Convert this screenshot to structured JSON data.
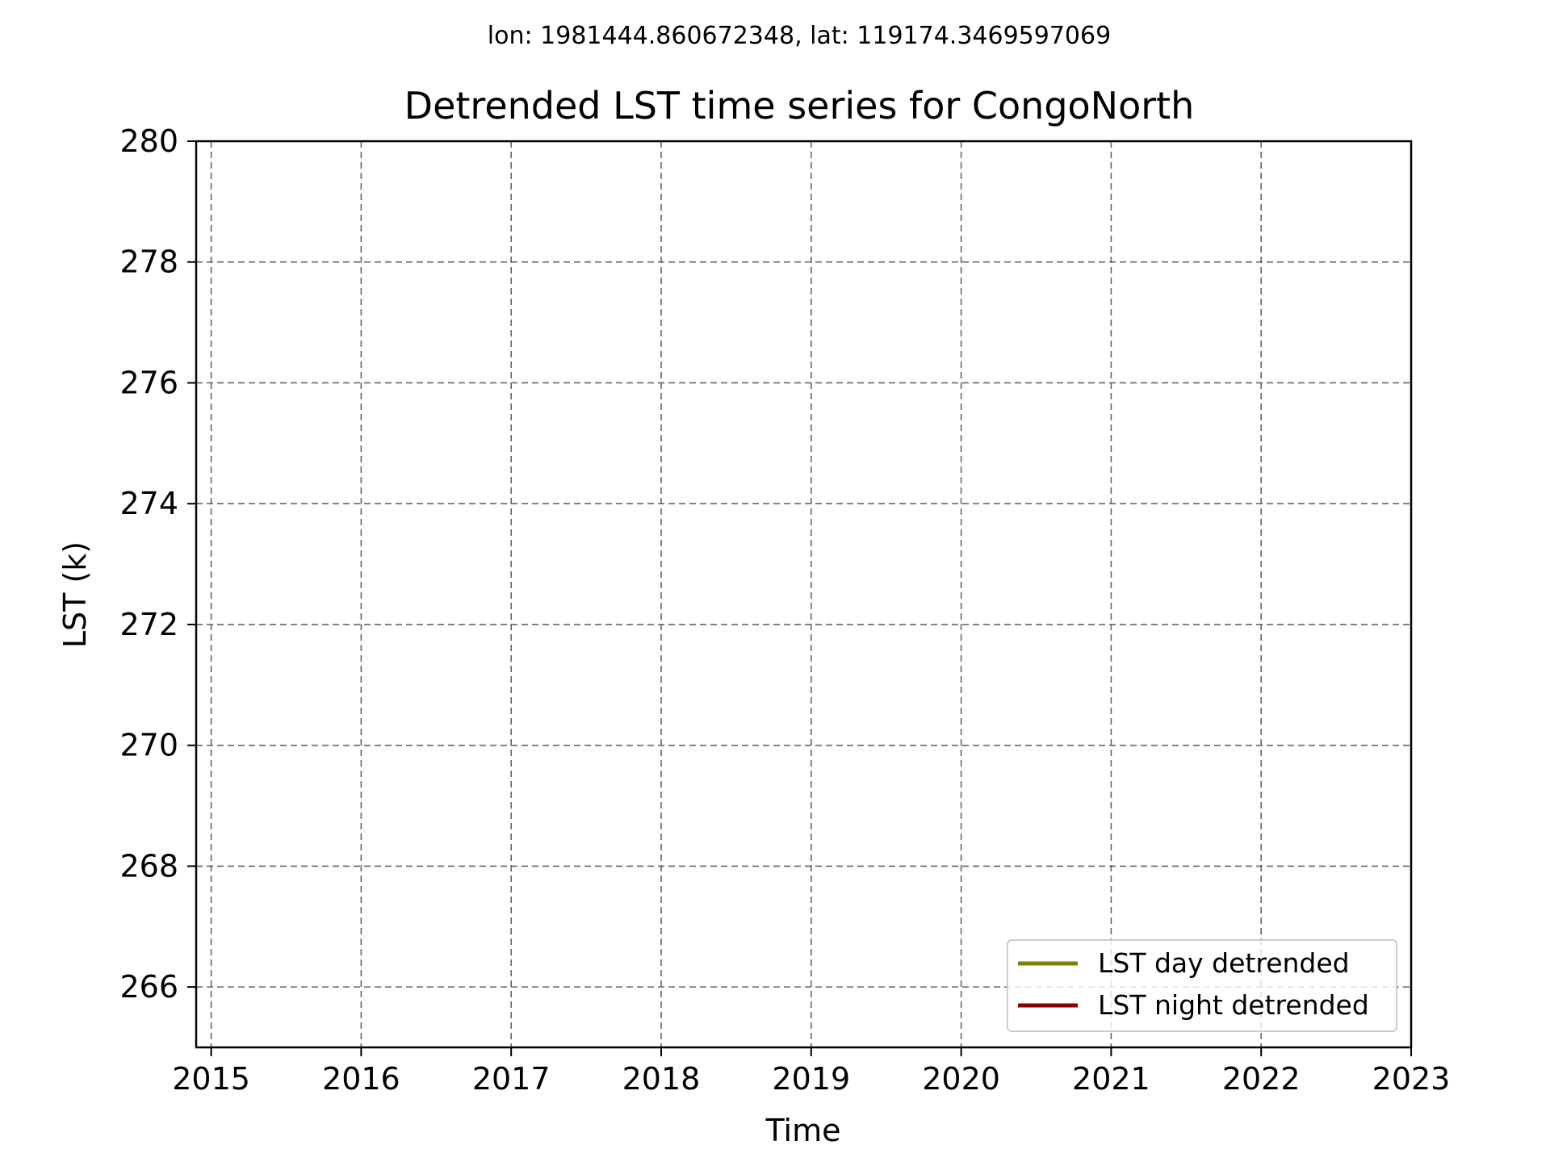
{
  "chart_data": {
    "type": "line",
    "suptitle": "lon: 1981444.860672348, lat: 119174.3469597069",
    "title": "Detrended LST time series for CongoNorth",
    "xlabel": "Time",
    "ylabel": "LST (k)",
    "xlim": [
      2014.9,
      2023
    ],
    "ylim": [
      265,
      280
    ],
    "x_ticks": [
      2015,
      2016,
      2017,
      2018,
      2019,
      2020,
      2021,
      2022,
      2023
    ],
    "y_ticks": [
      266,
      268,
      270,
      272,
      274,
      276,
      278,
      280
    ],
    "grid": true,
    "grid_style": "dashed",
    "legend_position": "lower-right",
    "series": [
      {
        "name": "LST day detrended",
        "color": "#808000",
        "x": [],
        "y": []
      },
      {
        "name": "LST night detrended",
        "color": "#8b0000",
        "x": [],
        "y": []
      }
    ]
  }
}
